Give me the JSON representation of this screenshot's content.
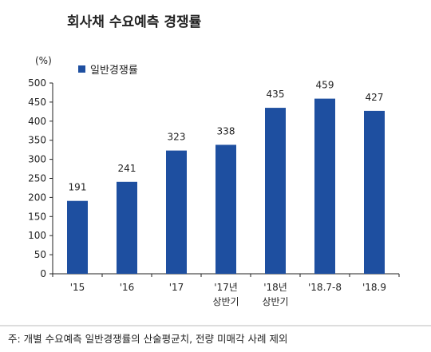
{
  "chart_data": {
    "type": "bar",
    "title": "회사채 수요예측 경쟁률",
    "ylabel": "(%)",
    "ylim": [
      0,
      500
    ],
    "yticks": [
      0,
      50,
      100,
      150,
      200,
      250,
      300,
      350,
      400,
      450,
      500
    ],
    "grid": false,
    "legend_position": "top-left",
    "categories": [
      [
        "'15"
      ],
      [
        "'16"
      ],
      [
        "'17"
      ],
      [
        "'17년",
        "상반기"
      ],
      [
        "'18년",
        "상반기"
      ],
      [
        "'18.7-8"
      ],
      [
        "'18.9"
      ]
    ],
    "series": [
      {
        "name": "일반경쟁률",
        "color": "#1e4fa0",
        "values": [
          191,
          241,
          323,
          338,
          435,
          459,
          427
        ]
      }
    ],
    "footnote": "주: 개별 수요예측 일반경쟁률의 산술평균치, 전량 미매각 사례 제외"
  }
}
